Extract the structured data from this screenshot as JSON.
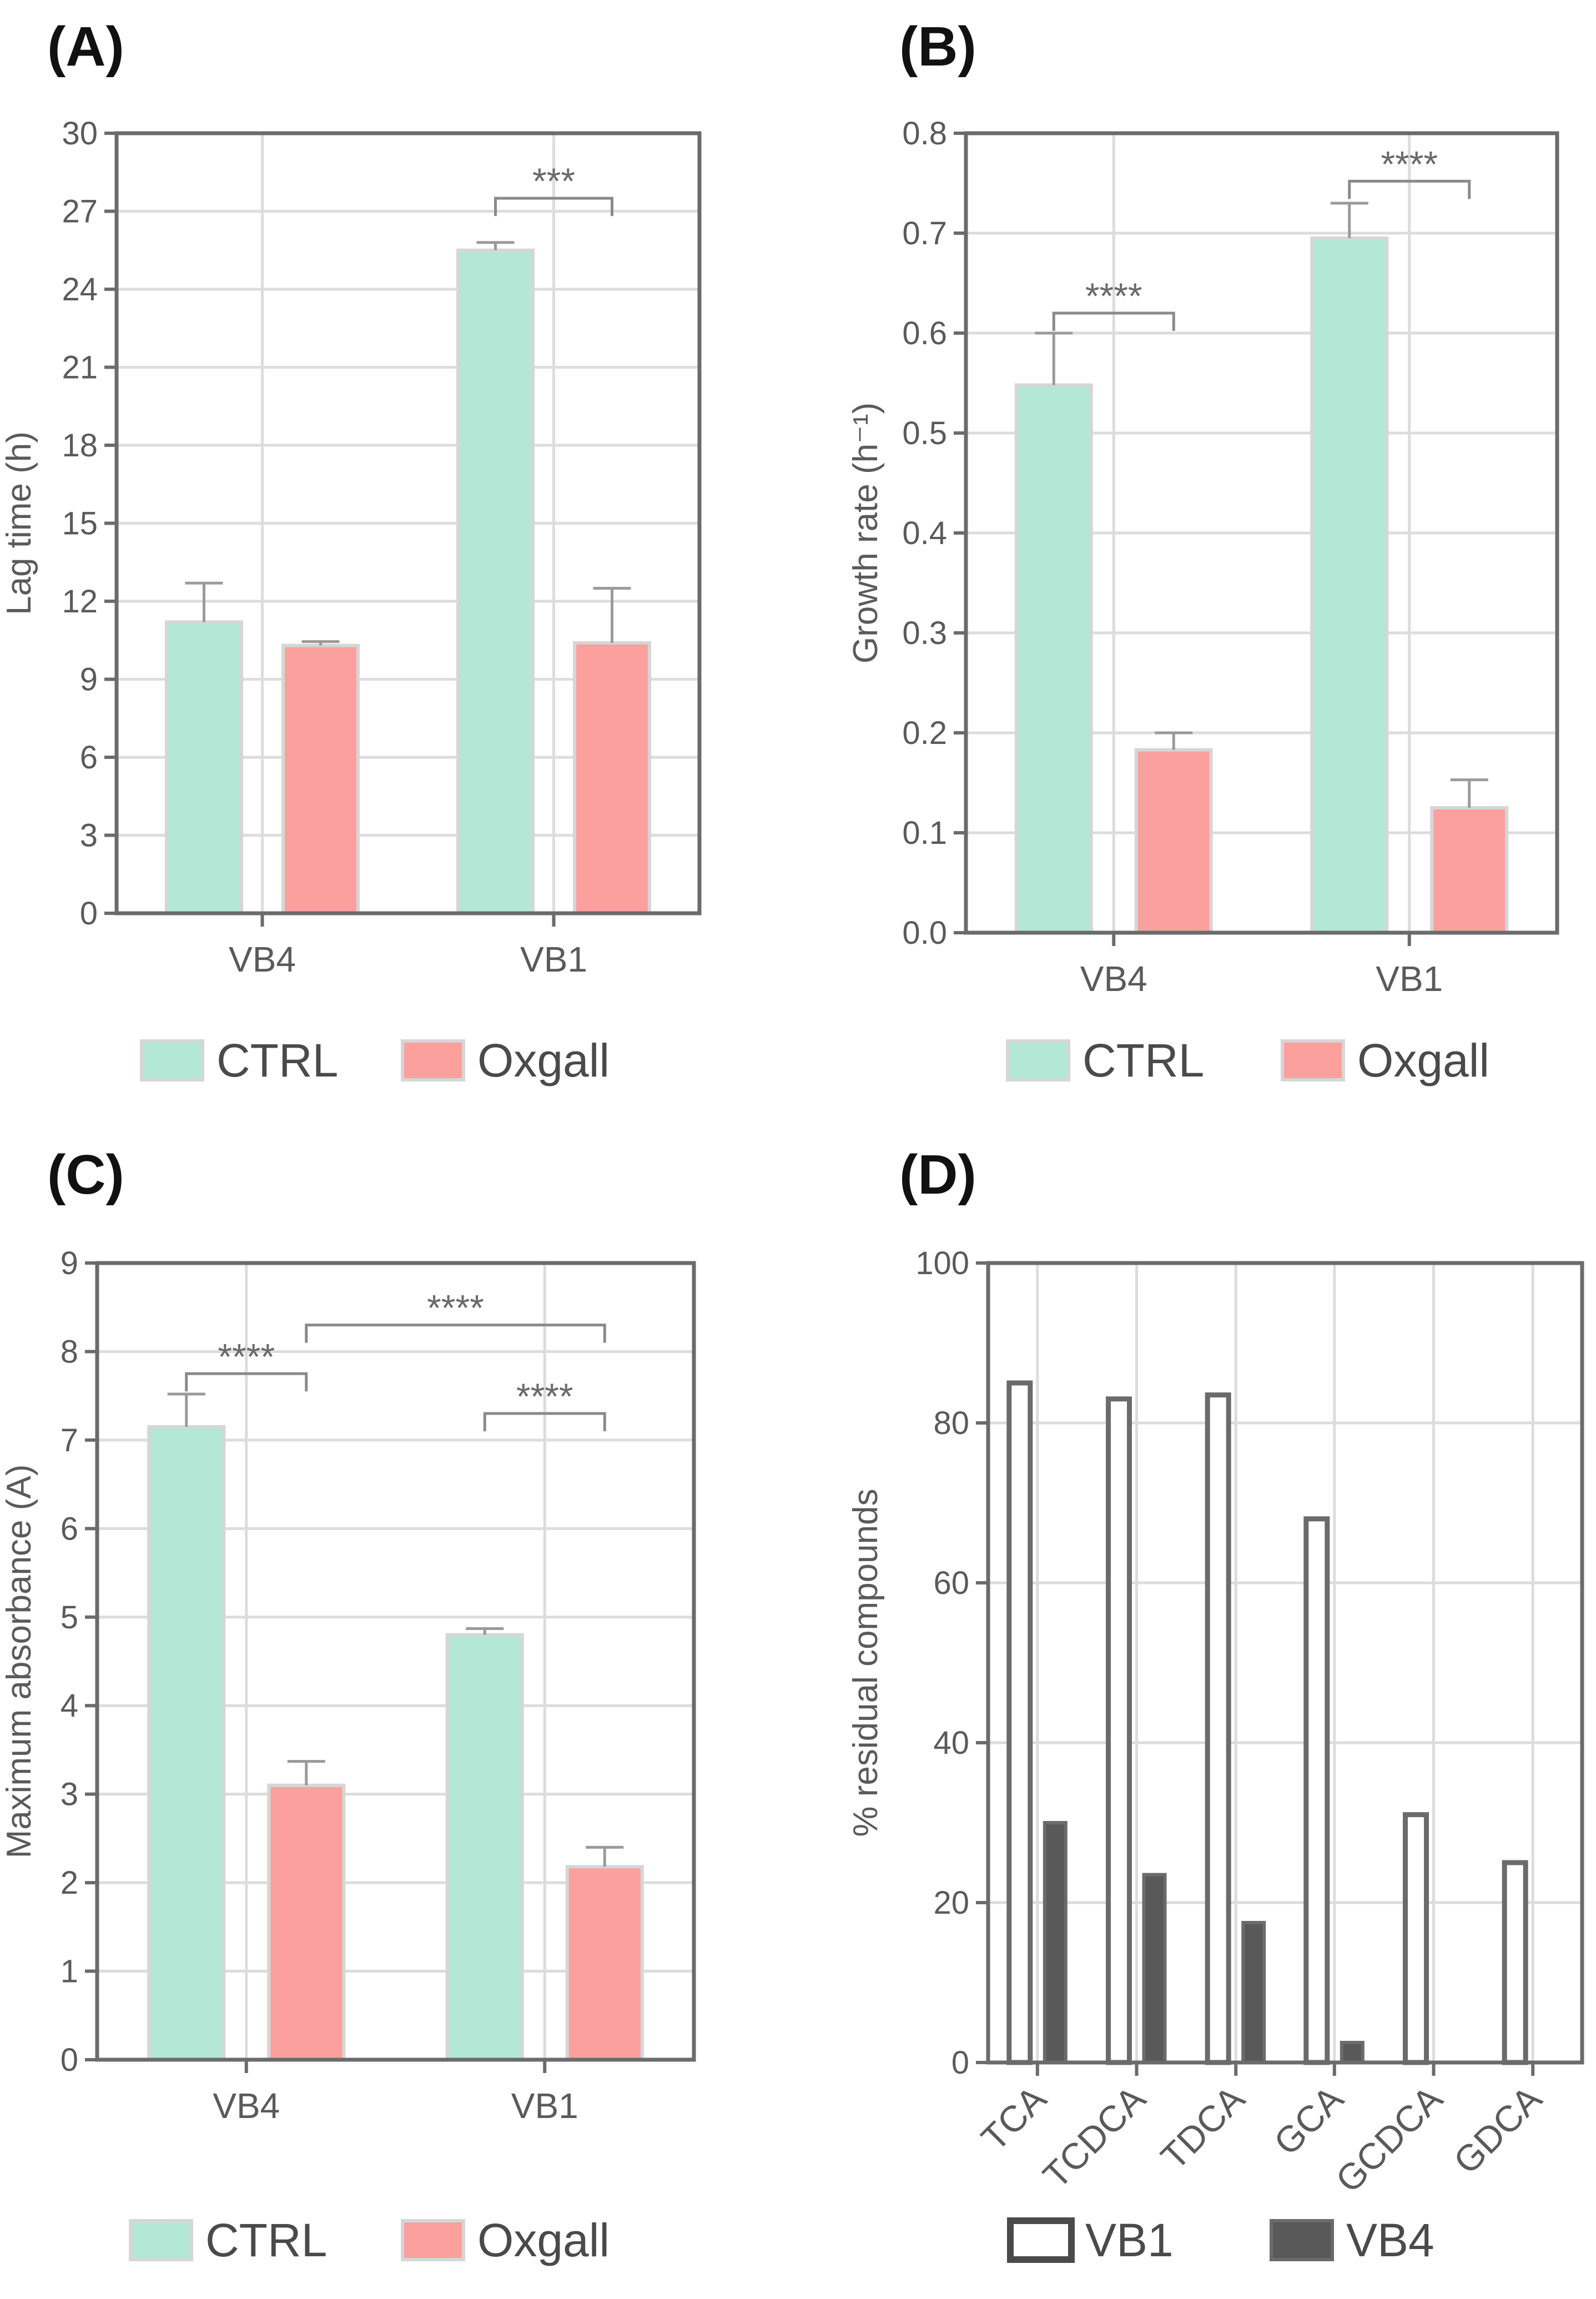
{
  "colors": {
    "ctrl": "#b3e8d6",
    "oxgall": "#fca09e",
    "bar_edge": "#d6d6d6",
    "frame": "#6b6b6b",
    "grid": "#dcdcdc",
    "text": "#5a5a5a",
    "vb4_fill": "#595959",
    "error": "#9a9a9a"
  },
  "chart_data": [
    {
      "panel": "(A)",
      "type": "bar",
      "title": "",
      "xlabel": "",
      "ylabel": "Lag time (h)",
      "categories": [
        "VB4",
        "VB1"
      ],
      "ylim": [
        0,
        30
      ],
      "ytick_labels": [
        "0",
        "3",
        "6",
        "9",
        "12",
        "15",
        "18",
        "21",
        "24",
        "27",
        "30"
      ],
      "series": [
        {
          "name": "CTRL",
          "color_key": "ctrl",
          "values": [
            11.2,
            25.5
          ],
          "errors": [
            1.5,
            0.3
          ]
        },
        {
          "name": "Oxgall",
          "color_key": "oxgall",
          "values": [
            10.3,
            10.4
          ],
          "errors": [
            0.15,
            2.1
          ]
        }
      ],
      "significance": [
        {
          "label": "***",
          "from": [
            1,
            0
          ],
          "to": [
            1,
            1
          ],
          "y": 27.5
        }
      ],
      "legend": {
        "position": "bottom",
        "entries": [
          "CTRL",
          "Oxgall"
        ]
      }
    },
    {
      "panel": "(B)",
      "type": "bar",
      "title": "",
      "xlabel": "",
      "ylabel": "Growth rate (h⁻¹)",
      "categories": [
        "VB4",
        "VB1"
      ],
      "ylim": [
        0,
        0.8
      ],
      "ytick_labels": [
        "0.0",
        "0.1",
        "0.2",
        "0.3",
        "0.4",
        "0.5",
        "0.6",
        "0.7",
        "0.8"
      ],
      "series": [
        {
          "name": "CTRL",
          "color_key": "ctrl",
          "values": [
            0.548,
            0.695
          ],
          "errors": [
            0.052,
            0.035
          ]
        },
        {
          "name": "Oxgall",
          "color_key": "oxgall",
          "values": [
            0.183,
            0.125
          ],
          "errors": [
            0.017,
            0.028
          ]
        }
      ],
      "significance": [
        {
          "label": "****",
          "from": [
            0,
            0
          ],
          "to": [
            0,
            1
          ],
          "y": 0.62
        },
        {
          "label": "****",
          "from": [
            1,
            0
          ],
          "to": [
            1,
            1
          ],
          "y": 0.752
        }
      ],
      "legend": {
        "position": "bottom",
        "entries": [
          "CTRL",
          "Oxgall"
        ]
      }
    },
    {
      "panel": "(C)",
      "type": "bar",
      "title": "",
      "xlabel": "",
      "ylabel": "Maximum absorbance (A)",
      "categories": [
        "VB4",
        "VB1"
      ],
      "ylim": [
        0,
        9
      ],
      "ytick_labels": [
        "0",
        "1",
        "2",
        "3",
        "4",
        "5",
        "6",
        "7",
        "8",
        "9"
      ],
      "series": [
        {
          "name": "CTRL",
          "color_key": "ctrl",
          "values": [
            7.15,
            4.8
          ],
          "errors": [
            0.37,
            0.07
          ]
        },
        {
          "name": "Oxgall",
          "color_key": "oxgall",
          "values": [
            3.1,
            2.18
          ],
          "errors": [
            0.27,
            0.22
          ]
        }
      ],
      "significance": [
        {
          "label": "****",
          "from": [
            0,
            0
          ],
          "to": [
            0,
            1
          ],
          "y": 7.75
        },
        {
          "label": "****",
          "from": [
            0,
            1
          ],
          "to": [
            1,
            1
          ],
          "y": 8.3
        },
        {
          "label": "****",
          "from": [
            1,
            0
          ],
          "to": [
            1,
            1
          ],
          "y": 7.3
        }
      ],
      "legend": {
        "position": "bottom",
        "entries": [
          "CTRL",
          "Oxgall"
        ]
      }
    },
    {
      "panel": "(D)",
      "type": "bar",
      "title": "",
      "xlabel": "",
      "ylabel": "% residual compounds",
      "categories": [
        "TCA",
        "TCDCA",
        "TDCA",
        "GCA",
        "GCDCA",
        "GDCA"
      ],
      "ylim": [
        0,
        100
      ],
      "ytick_labels": [
        "0",
        "20",
        "40",
        "60",
        "80",
        "100"
      ],
      "series": [
        {
          "name": "VB1",
          "color_key": "white",
          "values": [
            85,
            83,
            83.5,
            68,
            31,
            25
          ]
        },
        {
          "name": "VB4",
          "color_key": "vb4_fill",
          "values": [
            30,
            23.5,
            17.5,
            2.5,
            0,
            0
          ]
        }
      ],
      "legend": {
        "position": "bottom",
        "entries": [
          "VB1",
          "VB4"
        ]
      }
    }
  ]
}
